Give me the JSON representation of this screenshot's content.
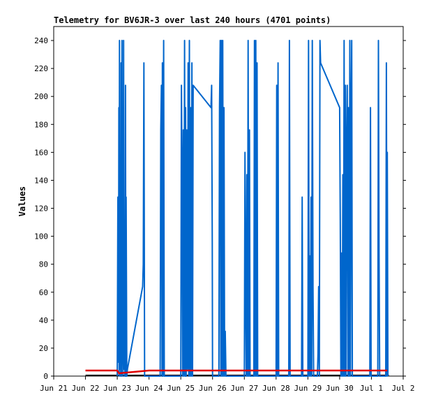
{
  "chart_data": {
    "type": "line",
    "title": "Telemetry for BV6JR-3 over last 240 hours (4701 points)",
    "xlabel": "",
    "ylabel": "Values",
    "ylim": [
      0,
      250
    ],
    "y_ticks": [
      0,
      20,
      40,
      60,
      80,
      100,
      120,
      140,
      160,
      180,
      200,
      220,
      240
    ],
    "x_tick_labels": [
      "Jun 21",
      "Jun 22",
      "Jun 23",
      "Jun 24",
      "Jun 25",
      "Jun 26",
      "Jun 27",
      "Jun 28",
      "Jun 29",
      "Jun 30",
      "Jul 1",
      "Jul 2"
    ],
    "xlim_days": [
      0,
      11
    ],
    "grid": false,
    "series": [
      {
        "color": "#0066cc",
        "points": [
          [
            2.0,
            0
          ],
          [
            2.02,
            128
          ],
          [
            2.04,
            10
          ],
          [
            2.05,
            192
          ],
          [
            2.06,
            0
          ],
          [
            2.07,
            240
          ],
          [
            2.08,
            5
          ],
          [
            2.1,
            112
          ],
          [
            2.11,
            0
          ],
          [
            2.12,
            224
          ],
          [
            2.13,
            0
          ],
          [
            2.15,
            240
          ],
          [
            2.16,
            30
          ],
          [
            2.18,
            0
          ],
          [
            2.2,
            240
          ],
          [
            2.21,
            5
          ],
          [
            2.22,
            96
          ],
          [
            2.24,
            0
          ],
          [
            2.26,
            208
          ],
          [
            2.27,
            0
          ],
          [
            2.28,
            128
          ],
          [
            2.3,
            0
          ],
          [
            2.32,
            5
          ],
          [
            2.8,
            64
          ],
          [
            2.82,
            80
          ],
          [
            2.84,
            224
          ],
          [
            2.86,
            0
          ],
          [
            3.35,
            0
          ],
          [
            3.37,
            176
          ],
          [
            3.39,
            208
          ],
          [
            3.41,
            0
          ],
          [
            3.42,
            224
          ],
          [
            3.44,
            0
          ],
          [
            3.46,
            240
          ],
          [
            3.48,
            0
          ],
          [
            4.0,
            0
          ],
          [
            4.02,
            208
          ],
          [
            4.04,
            144
          ],
          [
            4.06,
            0
          ],
          [
            4.08,
            176
          ],
          [
            4.1,
            0
          ],
          [
            4.12,
            240
          ],
          [
            4.14,
            0
          ],
          [
            4.15,
            192
          ],
          [
            4.17,
            0
          ],
          [
            4.19,
            176
          ],
          [
            4.21,
            5
          ],
          [
            4.23,
            224
          ],
          [
            4.25,
            0
          ],
          [
            4.27,
            240
          ],
          [
            4.29,
            0
          ],
          [
            4.31,
            192
          ],
          [
            4.33,
            0
          ],
          [
            4.35,
            224
          ],
          [
            4.37,
            0
          ],
          [
            4.39,
            208
          ],
          [
            4.95,
            192
          ],
          [
            4.97,
            208
          ],
          [
            4.99,
            96
          ],
          [
            5.0,
            0
          ],
          [
            5.2,
            0
          ],
          [
            5.22,
            192
          ],
          [
            5.24,
            240
          ],
          [
            5.26,
            0
          ],
          [
            5.28,
            240
          ],
          [
            5.3,
            0
          ],
          [
            5.32,
            240
          ],
          [
            5.34,
            0
          ],
          [
            5.36,
            192
          ],
          [
            5.38,
            0
          ],
          [
            5.4,
            32
          ],
          [
            5.42,
            0
          ],
          [
            6.0,
            0
          ],
          [
            6.02,
            160
          ],
          [
            6.04,
            64
          ],
          [
            6.06,
            0
          ],
          [
            6.08,
            144
          ],
          [
            6.1,
            0
          ],
          [
            6.12,
            240
          ],
          [
            6.14,
            0
          ],
          [
            6.16,
            176
          ],
          [
            6.18,
            0
          ],
          [
            6.3,
            0
          ],
          [
            6.32,
            240
          ],
          [
            6.34,
            0
          ],
          [
            6.36,
            240
          ],
          [
            6.38,
            0
          ],
          [
            6.4,
            224
          ],
          [
            6.42,
            0
          ],
          [
            7.0,
            0
          ],
          [
            7.02,
            208
          ],
          [
            7.04,
            0
          ],
          [
            7.06,
            224
          ],
          [
            7.08,
            0
          ],
          [
            7.4,
            0
          ],
          [
            7.42,
            240
          ],
          [
            7.44,
            0
          ],
          [
            7.8,
            0
          ],
          [
            7.82,
            128
          ],
          [
            7.84,
            0
          ],
          [
            8.0,
            0
          ],
          [
            8.02,
            240
          ],
          [
            8.04,
            0
          ],
          [
            8.06,
            86
          ],
          [
            8.08,
            0
          ],
          [
            8.1,
            128
          ],
          [
            8.12,
            0
          ],
          [
            8.14,
            240
          ],
          [
            8.16,
            64
          ],
          [
            8.18,
            0
          ],
          [
            8.3,
            0
          ],
          [
            8.32,
            16
          ],
          [
            8.34,
            64
          ],
          [
            8.36,
            0
          ],
          [
            8.38,
            240
          ],
          [
            8.4,
            224
          ],
          [
            9.0,
            192
          ],
          [
            9.02,
            112
          ],
          [
            9.04,
            0
          ],
          [
            9.06,
            88
          ],
          [
            9.08,
            0
          ],
          [
            9.1,
            144
          ],
          [
            9.12,
            0
          ],
          [
            9.14,
            240
          ],
          [
            9.16,
            0
          ],
          [
            9.18,
            208
          ],
          [
            9.2,
            0
          ],
          [
            9.22,
            160
          ],
          [
            9.24,
            208
          ],
          [
            9.26,
            0
          ],
          [
            9.28,
            192
          ],
          [
            9.3,
            0
          ],
          [
            9.32,
            240
          ],
          [
            9.34,
            0
          ],
          [
            9.36,
            192
          ],
          [
            9.38,
            240
          ],
          [
            9.4,
            0
          ],
          [
            9.95,
            0
          ],
          [
            9.97,
            192
          ],
          [
            9.99,
            0
          ],
          [
            10.2,
            0
          ],
          [
            10.22,
            240
          ],
          [
            10.24,
            88
          ],
          [
            10.26,
            0
          ],
          [
            10.45,
            0
          ],
          [
            10.47,
            224
          ],
          [
            10.49,
            0
          ],
          [
            10.5,
            160
          ],
          [
            10.52,
            0
          ]
        ]
      },
      {
        "color": "#e00000",
        "points": [
          [
            1.0,
            4
          ],
          [
            2.0,
            4
          ],
          [
            2.05,
            2
          ],
          [
            3.0,
            4
          ],
          [
            5.0,
            4
          ],
          [
            8.0,
            4
          ],
          [
            10.5,
            4
          ]
        ]
      }
    ]
  }
}
